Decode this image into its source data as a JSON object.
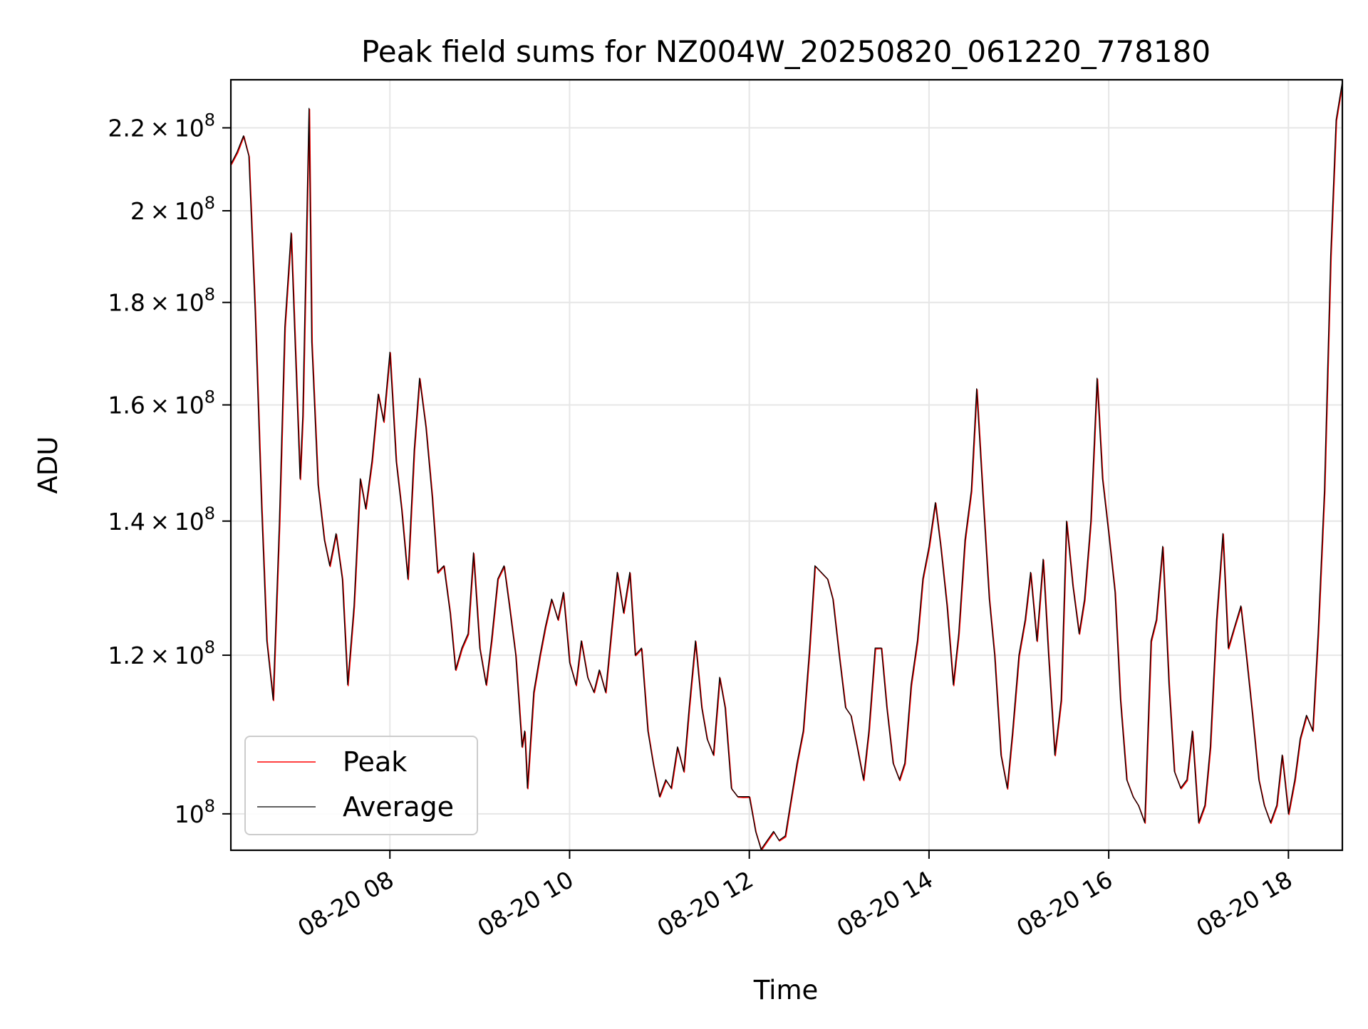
{
  "chart_data": {
    "type": "line",
    "title": "Peak field sums for NZ004W_20250820_061220_778180",
    "xlabel": "Time",
    "ylabel": "ADU",
    "x_unit": "hours (fractional, 2025-08-20)",
    "x_range": [
      6.23,
      18.6
    ],
    "y_scale": "log",
    "ylim": [
      95900000,
      232500000
    ],
    "grid": true,
    "legend_position": "lower-left",
    "x_ticks": [
      {
        "value": 8,
        "label": "08-20 08"
      },
      {
        "value": 10,
        "label": "08-20 10"
      },
      {
        "value": 12,
        "label": "08-20 12"
      },
      {
        "value": 14,
        "label": "08-20 14"
      },
      {
        "value": 16,
        "label": "08-20 16"
      },
      {
        "value": 18,
        "label": "08-20 18"
      }
    ],
    "y_ticks": [
      {
        "value": 100000000,
        "mant": "10",
        "exp": "8",
        "times": false
      },
      {
        "value": 120000000,
        "mant": "1.2",
        "exp": "8",
        "times": true
      },
      {
        "value": 140000000,
        "mant": "1.4",
        "exp": "8",
        "times": true
      },
      {
        "value": 160000000,
        "mant": "1.6",
        "exp": "8",
        "times": true
      },
      {
        "value": 180000000,
        "mant": "1.8",
        "exp": "8",
        "times": true
      },
      {
        "value": 200000000,
        "mant": "2",
        "exp": "8",
        "times": true
      },
      {
        "value": 220000000,
        "mant": "2.2",
        "exp": "8",
        "times": true
      }
    ],
    "series": [
      {
        "name": "Peak",
        "color": "#ff0000",
        "width": 1.6
      },
      {
        "name": "Average",
        "color": "#000000",
        "width": 1.3
      }
    ],
    "x": [
      6.23,
      6.3,
      6.37,
      6.43,
      6.5,
      6.57,
      6.63,
      6.7,
      6.77,
      6.83,
      6.9,
      6.97,
      7.0,
      7.03,
      7.1,
      7.13,
      7.2,
      7.27,
      7.33,
      7.4,
      7.47,
      7.53,
      7.6,
      7.67,
      7.73,
      7.8,
      7.87,
      7.93,
      8.0,
      8.07,
      8.13,
      8.2,
      8.27,
      8.33,
      8.4,
      8.47,
      8.53,
      8.6,
      8.67,
      8.73,
      8.8,
      8.87,
      8.93,
      9.0,
      9.07,
      9.13,
      9.2,
      9.27,
      9.33,
      9.4,
      9.47,
      9.5,
      9.53,
      9.6,
      9.67,
      9.73,
      9.8,
      9.87,
      9.93,
      10.0,
      10.07,
      10.13,
      10.2,
      10.27,
      10.33,
      10.4,
      10.47,
      10.53,
      10.6,
      10.67,
      10.73,
      10.8,
      10.87,
      10.93,
      11.0,
      11.07,
      11.13,
      11.2,
      11.27,
      11.33,
      11.4,
      11.47,
      11.53,
      11.6,
      11.67,
      11.73,
      11.8,
      11.87,
      11.93,
      12.0,
      12.07,
      12.13,
      12.2,
      12.27,
      12.33,
      12.4,
      12.47,
      12.53,
      12.6,
      12.67,
      12.73,
      12.8,
      12.87,
      12.93,
      13.0,
      13.07,
      13.13,
      13.2,
      13.27,
      13.33,
      13.4,
      13.47,
      13.53,
      13.6,
      13.67,
      13.73,
      13.8,
      13.87,
      13.93,
      14.0,
      14.07,
      14.13,
      14.2,
      14.27,
      14.33,
      14.4,
      14.47,
      14.53,
      14.6,
      14.67,
      14.73,
      14.8,
      14.87,
      14.93,
      15.0,
      15.07,
      15.13,
      15.2,
      15.27,
      15.33,
      15.4,
      15.47,
      15.53,
      15.6,
      15.67,
      15.73,
      15.8,
      15.87,
      15.93,
      16.0,
      16.07,
      16.13,
      16.2,
      16.27,
      16.33,
      16.4,
      16.47,
      16.53,
      16.6,
      16.67,
      16.73,
      16.8,
      16.87,
      16.93,
      17.0,
      17.07,
      17.13,
      17.2,
      17.27,
      17.33,
      17.4,
      17.47,
      17.53,
      17.6,
      17.67,
      17.73,
      17.8,
      17.87,
      17.93,
      18.0,
      18.07,
      18.13,
      18.2,
      18.27,
      18.33,
      18.4,
      18.47,
      18.53,
      18.6
    ],
    "average": [
      211000000,
      214000000,
      218000000,
      213000000,
      178000000,
      143000000,
      122000000,
      114000000,
      140000000,
      175000000,
      195000000,
      160000000,
      147000000,
      158000000,
      225000000,
      172000000,
      146000000,
      137000000,
      133000000,
      138000000,
      131000000,
      116000000,
      127000000,
      147000000,
      142000000,
      150000000,
      162000000,
      157000000,
      170000000,
      150000000,
      142000000,
      131000000,
      152000000,
      165000000,
      156000000,
      144000000,
      132000000,
      133000000,
      126000000,
      118000000,
      121000000,
      123000000,
      135000000,
      121000000,
      116000000,
      122000000,
      131000000,
      133000000,
      127000000,
      120000000,
      108000000,
      110000000,
      103000000,
      115000000,
      120000000,
      124000000,
      128000000,
      125000000,
      129000000,
      119000000,
      116000000,
      122000000,
      117000000,
      115000000,
      118000000,
      115000000,
      124000000,
      132000000,
      126000000,
      132000000,
      120000000,
      121000000,
      110000000,
      106000000,
      102000000,
      104000000,
      103000000,
      108000000,
      105000000,
      113000000,
      122000000,
      113000000,
      109000000,
      107000000,
      117000000,
      113000000,
      103000000,
      102000000,
      102000000,
      102000000,
      98000000,
      96000000,
      97000000,
      98000000,
      97000000,
      97500000,
      102000000,
      106000000,
      110000000,
      121000000,
      133000000,
      132000000,
      131000000,
      128000000,
      120000000,
      113000000,
      112000000,
      108000000,
      104000000,
      110000000,
      121000000,
      121000000,
      113000000,
      106000000,
      104000000,
      106000000,
      116000000,
      122000000,
      131000000,
      136000000,
      143000000,
      136000000,
      127000000,
      116000000,
      123000000,
      137000000,
      145000000,
      163000000,
      144000000,
      128000000,
      120000000,
      107000000,
      103000000,
      110000000,
      120000000,
      125000000,
      132000000,
      122000000,
      134000000,
      120000000,
      107000000,
      114000000,
      140000000,
      130000000,
      123000000,
      128000000,
      140000000,
      165000000,
      147000000,
      138000000,
      129000000,
      114000000,
      104000000,
      102000000,
      101000000,
      99000000,
      122000000,
      125000000,
      136000000,
      116000000,
      105000000,
      103000000,
      104000000,
      110000000,
      99000000,
      101000000,
      108000000,
      125000000,
      138000000,
      121000000,
      124000000,
      127000000,
      120000000,
      112000000,
      104000000,
      101000000,
      99000000,
      101000000,
      107000000,
      100000000,
      104000000,
      109000000,
      112000000,
      110000000,
      123000000,
      145000000,
      190000000,
      222000000,
      232000000
    ]
  }
}
